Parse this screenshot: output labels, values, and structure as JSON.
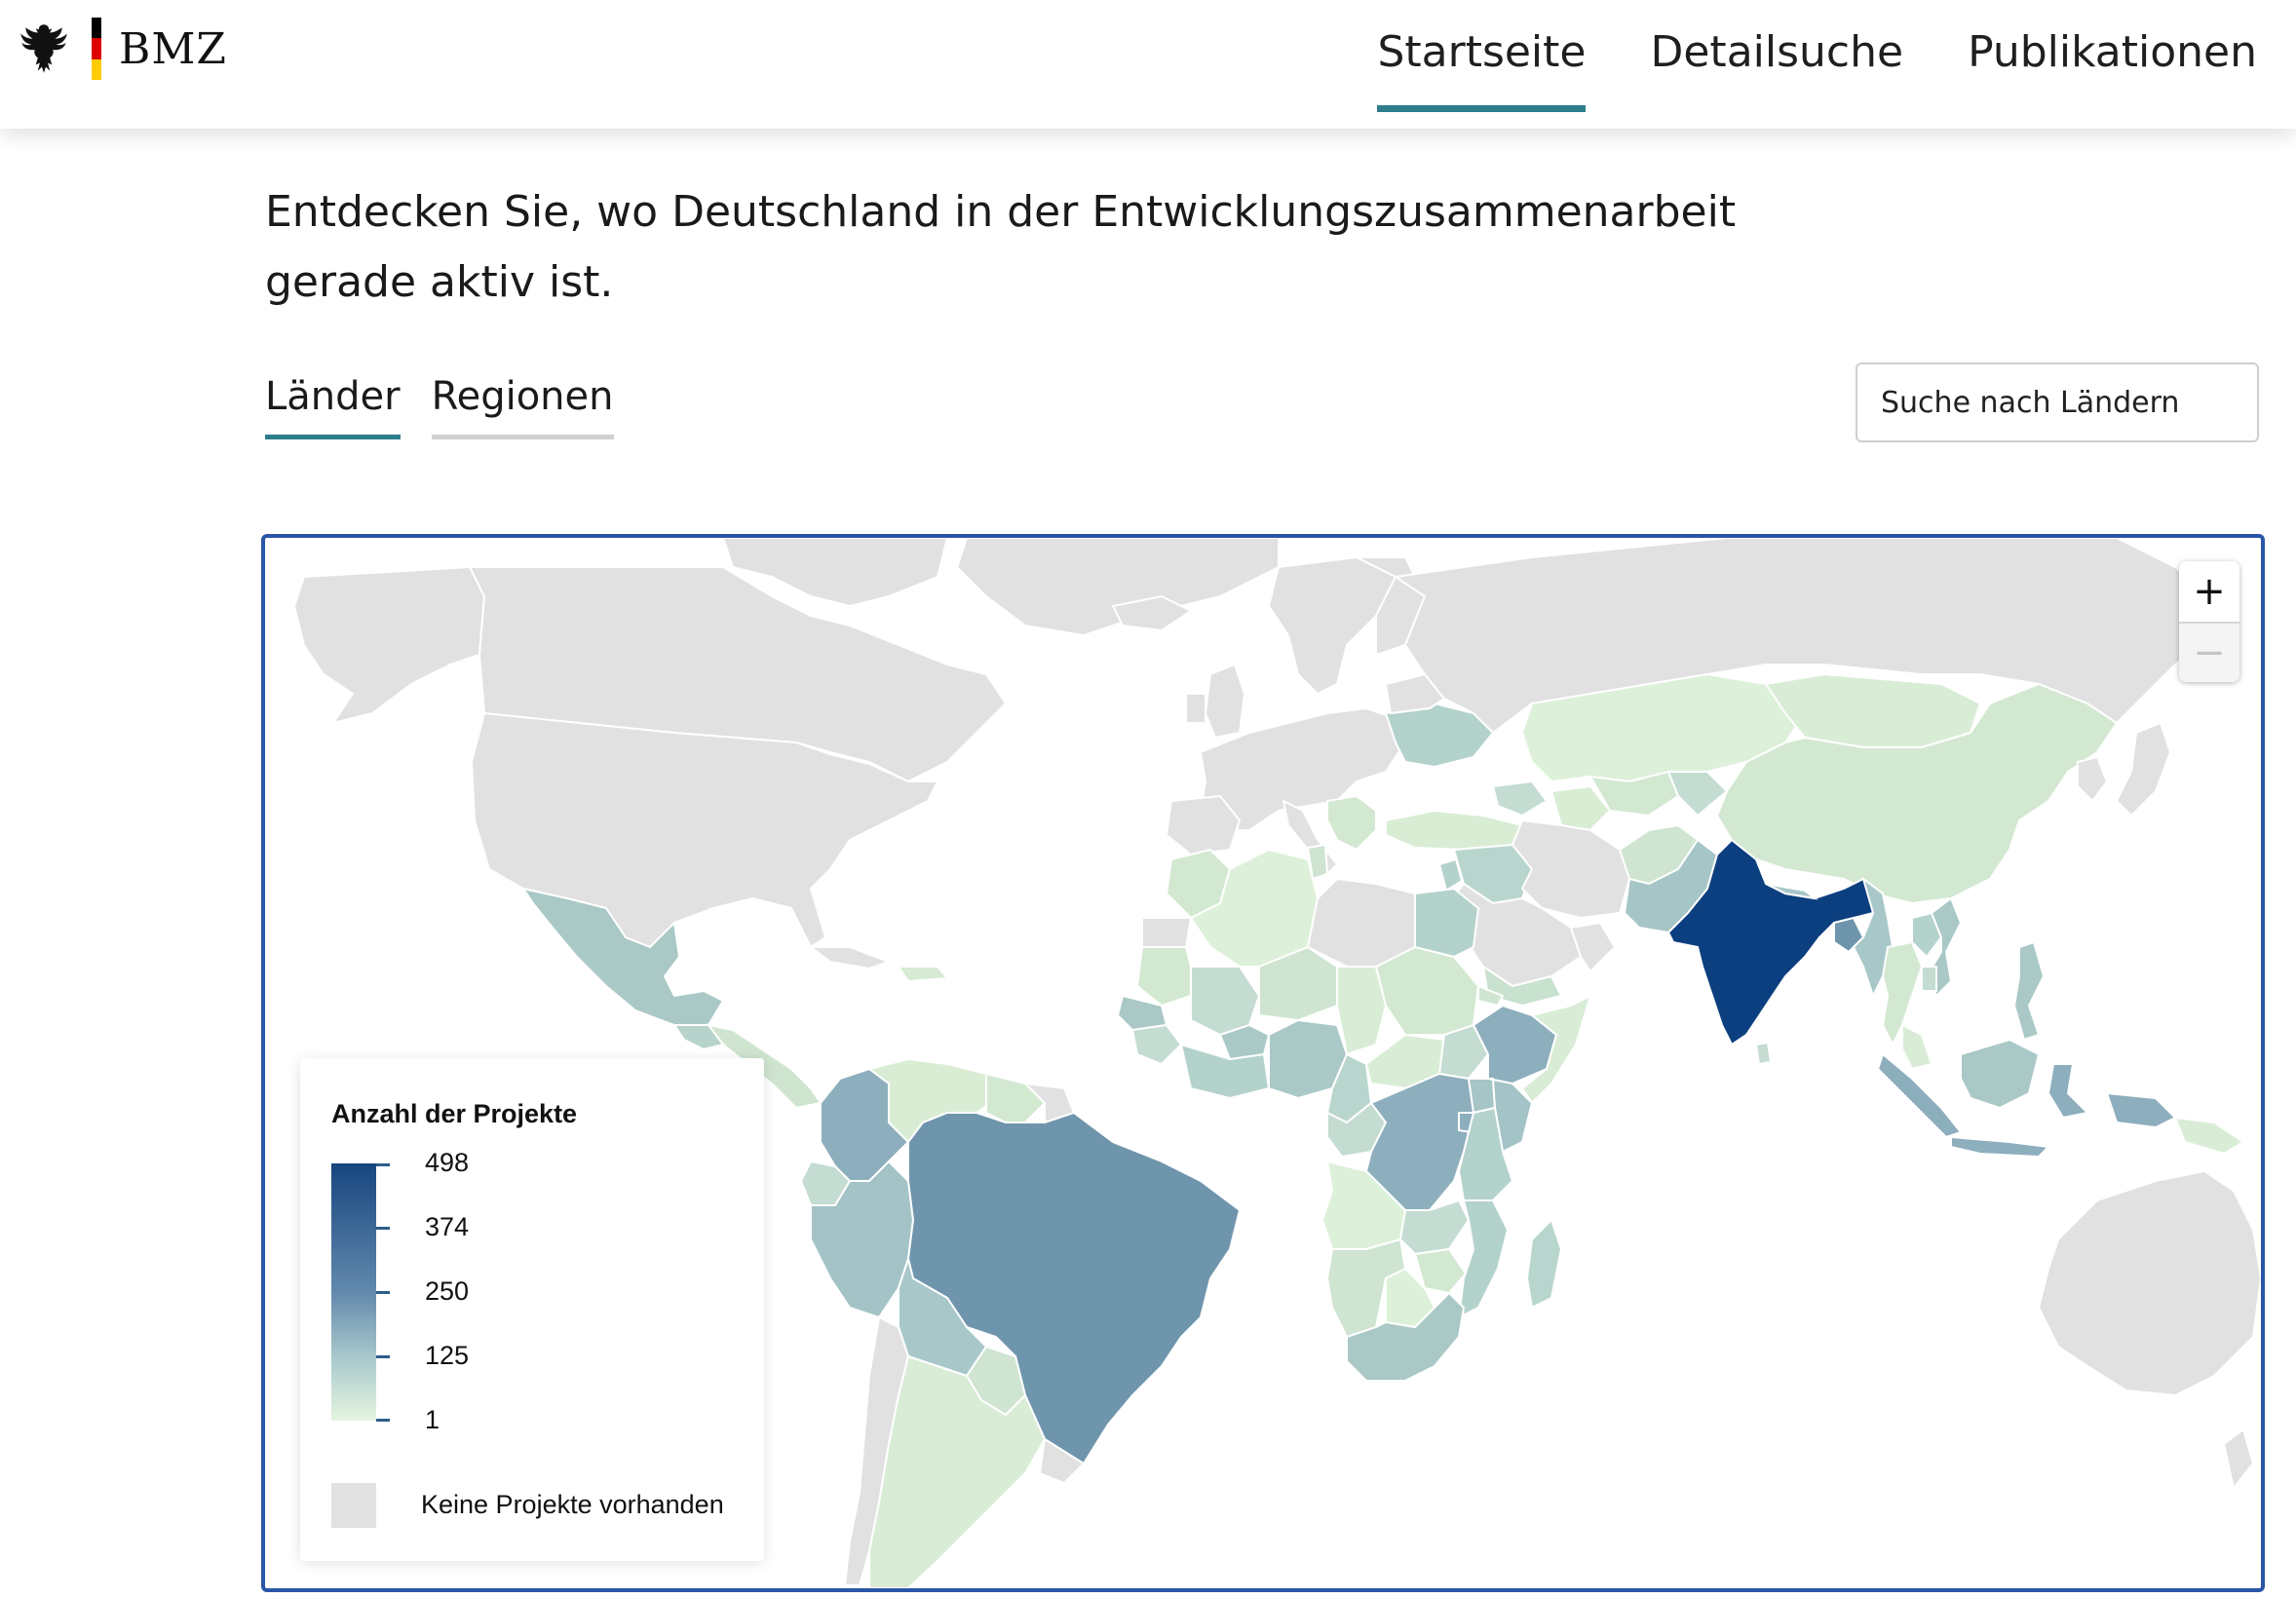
{
  "header": {
    "brand": "BMZ",
    "nav": [
      {
        "label": "Startseite",
        "active": true
      },
      {
        "label": "Detailsuche",
        "active": false
      },
      {
        "label": "Publikationen",
        "active": false
      }
    ]
  },
  "intro": {
    "text": "Entdecken Sie, wo Deutschland in der Entwicklungszusammenarbeit gerade aktiv ist."
  },
  "tabs": [
    {
      "label": "Länder",
      "active": true
    },
    {
      "label": "Regionen",
      "active": false
    }
  ],
  "search": {
    "placeholder": "Suche nach Ländern"
  },
  "map": {
    "zoom_in": "+",
    "zoom_out": "−",
    "legend": {
      "title": "Anzahl der Projekte",
      "ticks": [
        "498",
        "374",
        "250",
        "125",
        "1"
      ],
      "no_data_label": "Keine Projekte vorhanden"
    }
  },
  "colors": {
    "accent": "#2e7d8c",
    "frame_border": "#2a56a8",
    "no_data": "#e1e1e1",
    "scale_low": "#e5f5e0",
    "scale_high": "#0c3f7f"
  }
}
